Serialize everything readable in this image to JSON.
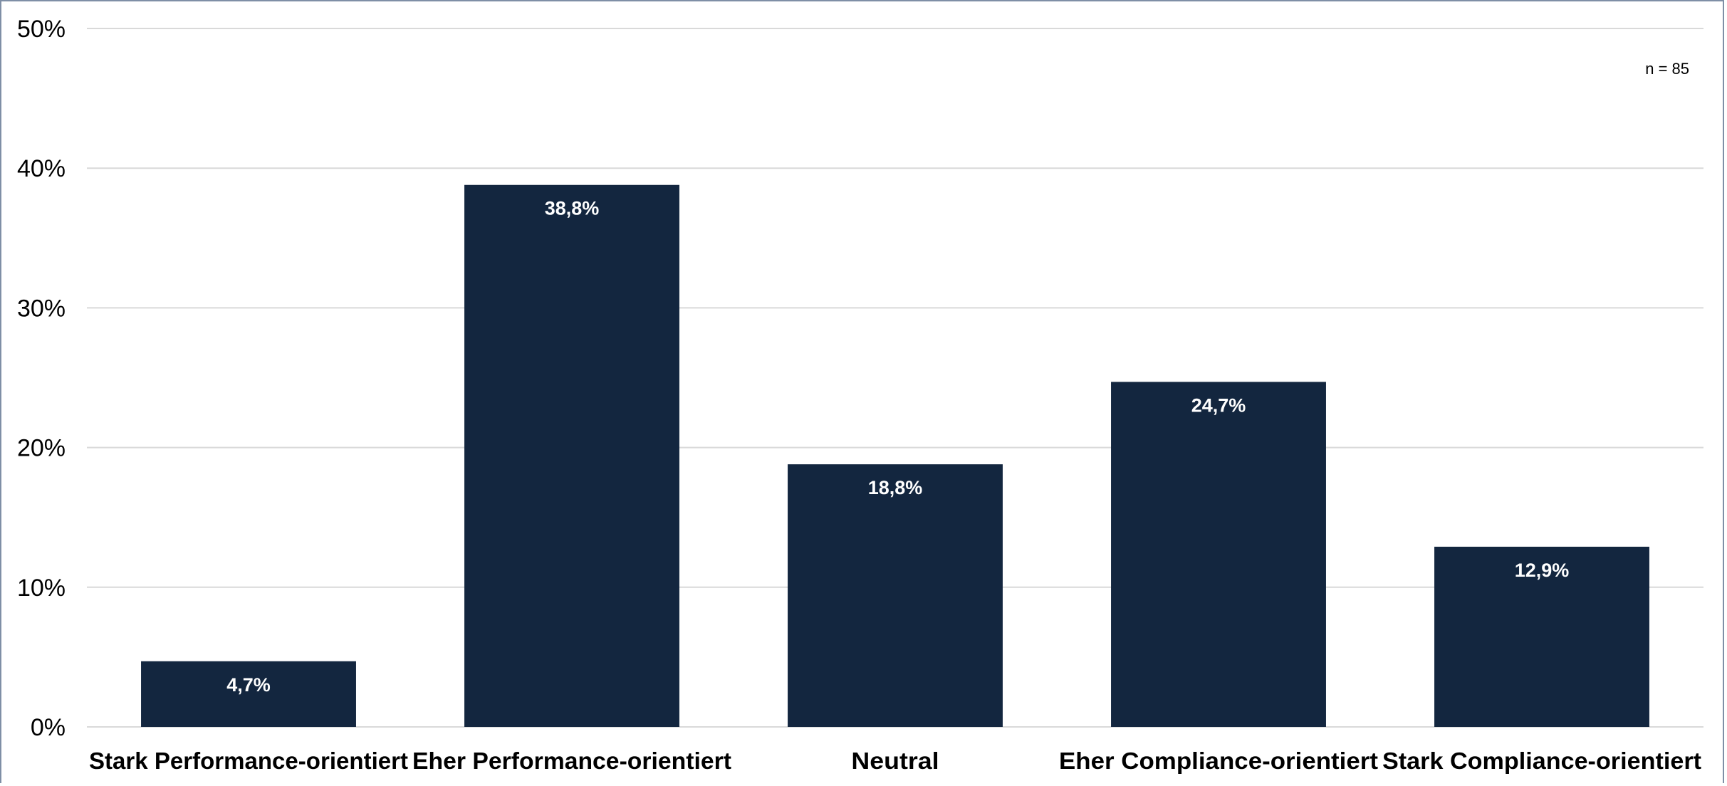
{
  "chart_data": {
    "type": "bar",
    "categories": [
      "Stark Performance-orientiert",
      "Eher Performance-orientiert",
      "Neutral",
      "Eher Compliance-orientiert",
      "Stark Compliance-orientiert"
    ],
    "values": [
      4.7,
      38.8,
      18.8,
      24.7,
      12.9
    ],
    "data_labels": [
      "4,7%",
      "38,8%",
      "18,8%",
      "24,7%",
      "12,9%"
    ],
    "y_ticks": [
      0,
      10,
      20,
      30,
      40,
      50
    ],
    "y_tick_labels": [
      "0%",
      "10%",
      "20%",
      "30%",
      "40%",
      "50%"
    ],
    "ylim": [
      0,
      50
    ],
    "grid": true,
    "legend": "none",
    "note": "n = 85",
    "colors": {
      "bar": "#13263f",
      "grid": "#d9d9d9",
      "frame": "#7f8fa6"
    }
  }
}
